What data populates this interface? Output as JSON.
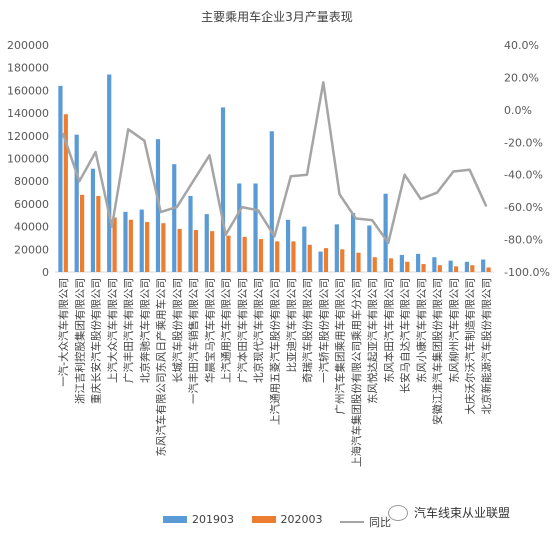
{
  "chart_data": {
    "type": "bar",
    "title": "主要乘用车企业3月产量表现",
    "categories": [
      "一汽-大众汽车有限公司",
      "浙江吉利控股集团有限公司",
      "重庆长安汽车股份有限公司",
      "上汽大众汽车有限公司",
      "广汽丰田汽车有限公司",
      "北京奔驰汽车有限公司",
      "东风汽车有限公司东风日产乘用车公司",
      "长城汽车股份有限公司",
      "一汽丰田汽车销售有限公司",
      "华晨宝马汽车有限公司",
      "上汽通用汽车有限公司",
      "广汽本田汽车有限公司",
      "北京现代汽车有限公司",
      "上汽通用五菱汽车股份有限公司",
      "比亚迪汽车有限公司",
      "奇瑞汽车股份有限公司",
      "一汽轿车股份有限公司",
      "广州汽车集团乘用车有限公司",
      "上海汽车集团股份有限公司乘用车分公司",
      "东风悦达起亚汽车有限公司",
      "东风本田汽车有限公司",
      "长安马自达汽车有限公司",
      "东风小康汽车有限公司",
      "安徽江淮汽车集团股份有限公司",
      "东风柳州汽车有限公司",
      "大庆沃尔沃汽车制造有限公司",
      "北京新能源汽车股份有限公司"
    ],
    "series": [
      {
        "name": "201903",
        "axis": "left",
        "type": "bar",
        "color": "#5b9bd5",
        "values": [
          164000,
          121000,
          91000,
          174000,
          53000,
          55000,
          117000,
          95000,
          67000,
          51000,
          145000,
          78000,
          78000,
          124000,
          46000,
          40000,
          18000,
          42000,
          52000,
          41000,
          69000,
          15000,
          16000,
          13000,
          10000,
          9000,
          11000
        ]
      },
      {
        "name": "202003",
        "axis": "left",
        "type": "bar",
        "color": "#ed7d31",
        "values": [
          139000,
          68000,
          67000,
          48000,
          46000,
          44000,
          43000,
          38000,
          37000,
          36000,
          32000,
          31000,
          29000,
          27000,
          27000,
          24000,
          21000,
          20000,
          17000,
          13000,
          12000,
          9000,
          7000,
          6000,
          5000,
          6000,
          4000
        ]
      },
      {
        "name": "同比",
        "axis": "right",
        "type": "line",
        "color": "#a5a5a5",
        "values": [
          -15,
          -44,
          -26,
          -72,
          -12,
          -19,
          -63,
          -60,
          -44,
          -28,
          -77,
          -60,
          -62,
          -78,
          -41,
          -40,
          17,
          -52,
          -67,
          -68,
          -82,
          -40,
          -55,
          -51,
          -38,
          -37,
          -59
        ]
      }
    ],
    "ylim": [
      0,
      200000
    ],
    "yticks": [
      "0",
      "20000",
      "40000",
      "60000",
      "80000",
      "100000",
      "120000",
      "140000",
      "160000",
      "180000",
      "200000"
    ],
    "y2lim": [
      -100,
      40
    ],
    "y2ticks": [
      "-100.0%",
      "-80.0%",
      "-60.0%",
      "-40.0%",
      "-20.0%",
      "0.0%",
      "20.0%",
      "40.0%"
    ],
    "xlabel": "",
    "ylabel": "",
    "legend": "bottom",
    "grid": false
  },
  "watermark": {
    "text": "汽车线束从业联盟",
    "icon": "wechat-icon"
  }
}
